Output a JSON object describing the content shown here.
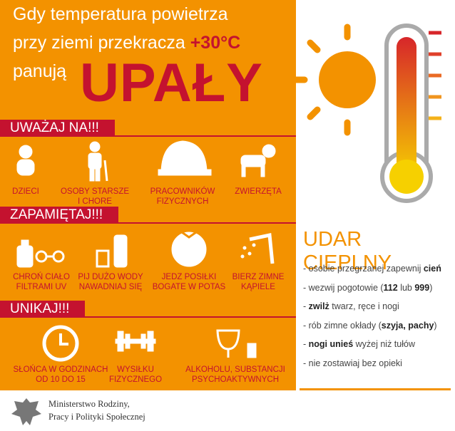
{
  "header": {
    "line1": "Gdy temperatura powietrza",
    "line2": "przy ziemi przekracza",
    "temperature": "+30°C",
    "line3": "panują",
    "headline": "UPAŁY"
  },
  "sections": [
    {
      "title": "UWAŻAJ NA!!!",
      "items": [
        {
          "lines": [
            "DZIECI"
          ]
        },
        {
          "lines": [
            "OSOBY STARSZE",
            "I CHORE"
          ]
        },
        {
          "lines": [
            "PRACOWNIKÓW",
            "FIZYCZNYCH"
          ]
        },
        {
          "lines": [
            "ZWIERZĘTA"
          ]
        }
      ]
    },
    {
      "title": "ZAPAMIĘTAJ!!!",
      "items": [
        {
          "lines": [
            "CHROŃ CIAŁO",
            "FILTRAMI UV"
          ]
        },
        {
          "lines": [
            "PIJ DUŻO WODY",
            "NAWADNIAJ SIĘ"
          ]
        },
        {
          "lines": [
            "JEDZ POSIŁKI",
            "BOGATE W POTAS"
          ]
        },
        {
          "lines": [
            "BIERZ ZIMNE",
            "KĄPIELE"
          ]
        }
      ]
    },
    {
      "title": "UNIKAJ!!!",
      "items": [
        {
          "lines": [
            "SŁOŃCA W GODZINACH",
            "OD 10 DO 15"
          ]
        },
        {
          "lines": [
            "WYSIŁKU",
            "FIZYCZNEGO"
          ]
        },
        {
          "lines": [
            "ALKOHOLU, SUBSTANCJI",
            "PSYCHOAKTYWNYCH"
          ]
        }
      ]
    }
  ],
  "heatstroke": {
    "title": "UDAR CIEPLNY",
    "items": [
      [
        {
          "text": "- osobie przegrzanej zapewnij "
        },
        {
          "text": "cień",
          "bold": true
        }
      ],
      [
        {
          "text": "- wezwij pogotowie ("
        },
        {
          "text": "112",
          "bold": true
        },
        {
          "text": " lub "
        },
        {
          "text": "999",
          "bold": true
        },
        {
          "text": ")"
        }
      ],
      [
        {
          "text": "- "
        },
        {
          "text": "zwilż",
          "bold": true
        },
        {
          "text": " twarz, ręce i nogi"
        }
      ],
      [
        {
          "text": "- rób zimne okłady ("
        },
        {
          "text": "szyja, pachy",
          "bold": true
        },
        {
          "text": ")"
        }
      ],
      [
        {
          "text": "- "
        },
        {
          "text": "nogi unieś",
          "bold": true
        },
        {
          "text": " wyżej niż tułów"
        }
      ],
      [
        {
          "text": "- nie zostawiaj bez opieki"
        }
      ]
    ]
  },
  "footer": {
    "lines": [
      "Ministerstwo Rodziny,",
      "Pracy i Polityki Społecznej"
    ]
  }
}
